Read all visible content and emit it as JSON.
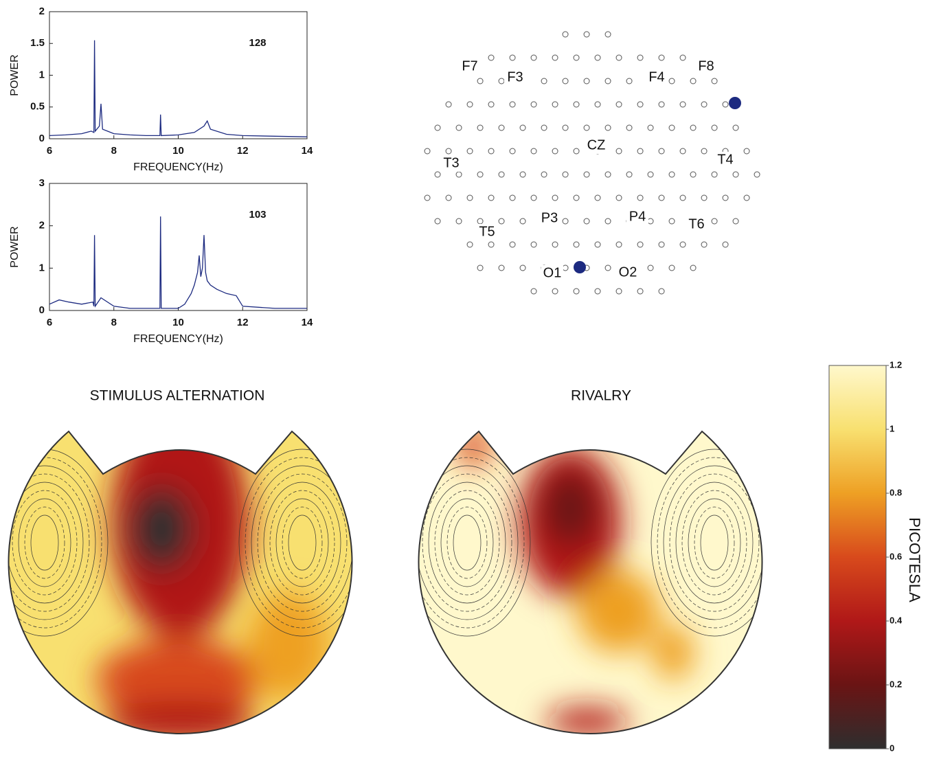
{
  "chart_data": [
    {
      "type": "line",
      "annotation": "128",
      "xlabel": "FREQUENCY(Hz)",
      "ylabel": "POWER",
      "color": "#1c2a80",
      "xlim": [
        6,
        14
      ],
      "ylim": [
        0,
        2
      ],
      "xticks": [
        6,
        8,
        10,
        12,
        14
      ],
      "yticks": [
        0,
        0.5,
        1,
        1.5,
        2
      ],
      "x": [
        6,
        6.5,
        7,
        7.3,
        7.38,
        7.4,
        7.42,
        7.55,
        7.6,
        7.65,
        7.8,
        8,
        8.5,
        9,
        9.43,
        9.45,
        9.47,
        10,
        10.5,
        10.8,
        10.9,
        11,
        11.5,
        12,
        13,
        14
      ],
      "values": [
        0.05,
        0.06,
        0.08,
        0.12,
        0.1,
        1.55,
        0.12,
        0.2,
        0.55,
        0.15,
        0.12,
        0.08,
        0.06,
        0.05,
        0.05,
        0.38,
        0.05,
        0.06,
        0.1,
        0.2,
        0.28,
        0.15,
        0.07,
        0.05,
        0.04,
        0.03
      ]
    },
    {
      "type": "line",
      "annotation": "103",
      "xlabel": "FREQUENCY(Hz)",
      "ylabel": "POWER",
      "color": "#1c2a80",
      "xlim": [
        6,
        14
      ],
      "ylim": [
        0,
        3
      ],
      "xticks": [
        6,
        8,
        10,
        12,
        14
      ],
      "yticks": [
        0,
        1,
        2,
        3
      ],
      "x": [
        6,
        6.3,
        6.6,
        7,
        7.35,
        7.38,
        7.4,
        7.42,
        7.6,
        8,
        8.5,
        9,
        9.43,
        9.45,
        9.47,
        10,
        10.2,
        10.4,
        10.5,
        10.6,
        10.65,
        10.7,
        10.75,
        10.8,
        10.85,
        10.9,
        11,
        11.2,
        11.5,
        11.8,
        12,
        13,
        14
      ],
      "values": [
        0.15,
        0.25,
        0.2,
        0.15,
        0.2,
        0.1,
        1.78,
        0.1,
        0.3,
        0.1,
        0.05,
        0.05,
        0.05,
        2.22,
        0.05,
        0.05,
        0.15,
        0.4,
        0.6,
        0.9,
        1.3,
        0.8,
        1.0,
        1.78,
        0.9,
        0.7,
        0.6,
        0.5,
        0.4,
        0.35,
        0.1,
        0.05,
        0.05
      ]
    },
    {
      "type": "colorbar",
      "label": "PICOTESLA",
      "ylim": [
        0,
        1.2
      ],
      "yticks": [
        0,
        0.2,
        0.4,
        0.6,
        0.8,
        1,
        1.2
      ],
      "colors": [
        "#2e2e2e",
        "#6a1414",
        "#b01818",
        "#d84a1c",
        "#eea024",
        "#f8e070",
        "#fff8cc"
      ]
    }
  ],
  "sensor_map": {
    "labels": [
      "F7",
      "F3",
      "F4",
      "F8",
      "CZ",
      "T3",
      "T4",
      "T5",
      "P3",
      "P4",
      "T6",
      "O1",
      "O2"
    ]
  },
  "topographic_maps": [
    {
      "title": "STIMULUS ALTERNATION"
    },
    {
      "title": "RIVALRY"
    }
  ]
}
